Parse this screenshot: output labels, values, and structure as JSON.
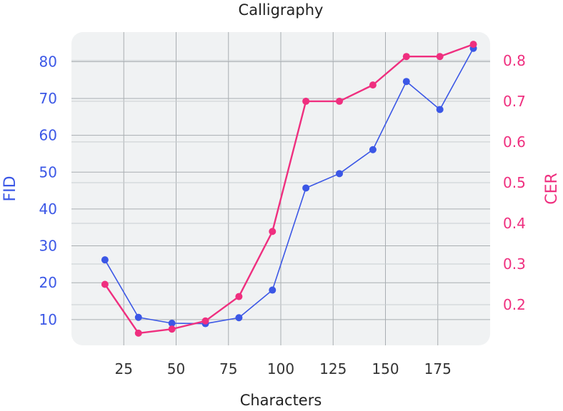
{
  "chart_data": {
    "type": "line",
    "title": "Calligraphy",
    "xlabel": "Characters",
    "ylabel_left": "FID",
    "ylabel_right": "CER",
    "x": [
      16,
      32,
      48,
      64,
      80,
      96,
      112,
      128,
      144,
      160,
      176,
      192
    ],
    "x_ticks": [
      25,
      50,
      75,
      100,
      125,
      150,
      175
    ],
    "xlim": [
      0,
      200
    ],
    "y_left_ticks": [
      10,
      20,
      30,
      40,
      50,
      60,
      70,
      80
    ],
    "ylim_left": [
      3,
      88
    ],
    "y_right_ticks": [
      0.2,
      0.3,
      0.4,
      0.5,
      0.6,
      0.7,
      0.8
    ],
    "ylim_right": [
      0.1,
      0.87
    ],
    "grid": true,
    "series": [
      {
        "name": "",
        "axis": "left",
        "color": "#3b57e6",
        "values": [
          26.2,
          10.6,
          9.0,
          8.9,
          10.5,
          18.0,
          45.7,
          49.6,
          56.1,
          74.6,
          67.0,
          83.6
        ]
      },
      {
        "name": "",
        "axis": "right",
        "color": "#ef2f7f",
        "values": [
          0.25,
          0.13,
          0.14,
          0.16,
          0.22,
          0.38,
          0.7,
          0.7,
          0.74,
          0.81,
          0.81,
          0.84
        ]
      }
    ]
  }
}
